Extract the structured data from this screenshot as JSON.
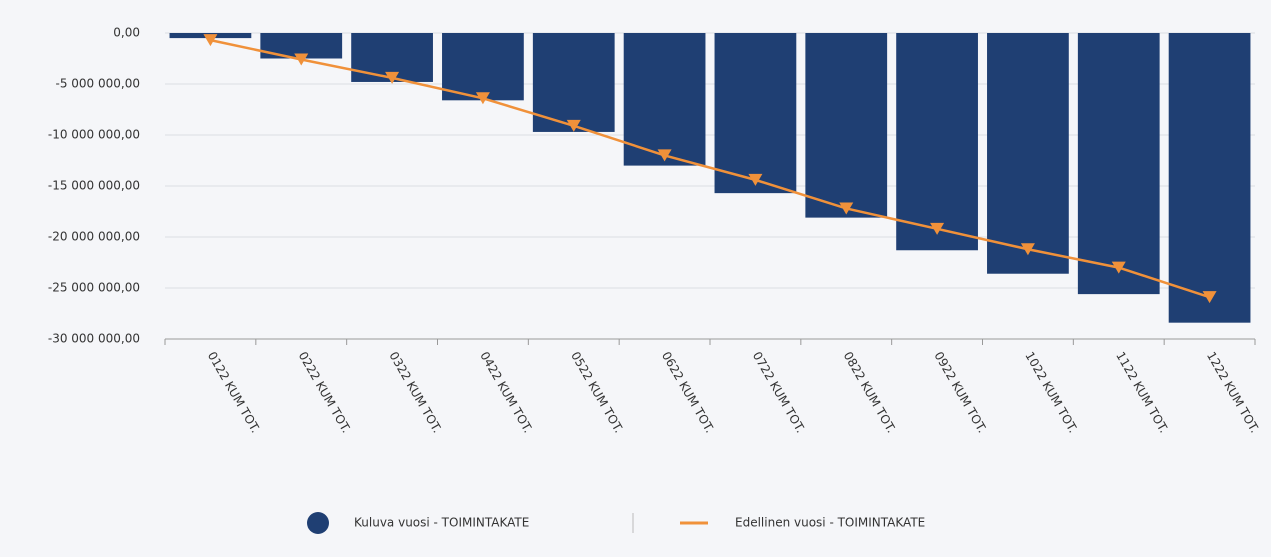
{
  "chart_data": {
    "type": "bar_line",
    "categories": [
      "0122 KUM TOT.",
      "0222 KUM TOT.",
      "0322 KUM TOT.",
      "0422 KUM TOT.",
      "0522 KUM TOT.",
      "0622 KUM TOT.",
      "0722 KUM TOT.",
      "0822 KUM TOT.",
      "0922 KUM TOT.",
      "1022 KUM TOT.",
      "1122 KUM TOT.",
      "1222 KUM TOT."
    ],
    "series": [
      {
        "name": "Kuluva vuosi - TOIMINTAKATE",
        "type": "bar",
        "color": "#1f3f73",
        "values": [
          -500000,
          -2500000,
          -4800000,
          -6600000,
          -9700000,
          -13000000,
          -15700000,
          -18100000,
          -21300000,
          -23600000,
          -25600000,
          -28400000
        ]
      },
      {
        "name": "Edellinen vuosi - TOIMINTAKATE",
        "type": "line",
        "color": "#f0913a",
        "values": [
          -700000,
          -2600000,
          -4400000,
          -6400000,
          -9100000,
          -12000000,
          -14400000,
          -17200000,
          -19200000,
          -21200000,
          -23000000,
          -25900000
        ]
      }
    ],
    "ylim": [
      -30000000,
      0
    ],
    "yticks": [
      {
        "value": 0,
        "label": "0,00"
      },
      {
        "value": -5000000,
        "label": "-5 000 000,00"
      },
      {
        "value": -10000000,
        "label": "-10 000 000,00"
      },
      {
        "value": -15000000,
        "label": "-15 000 000,00"
      },
      {
        "value": -20000000,
        "label": "-20 000 000,00"
      },
      {
        "value": -25000000,
        "label": "-25 000 000,00"
      },
      {
        "value": -30000000,
        "label": "-30 000 000,00"
      }
    ],
    "grid": true,
    "legend": "bottom"
  }
}
